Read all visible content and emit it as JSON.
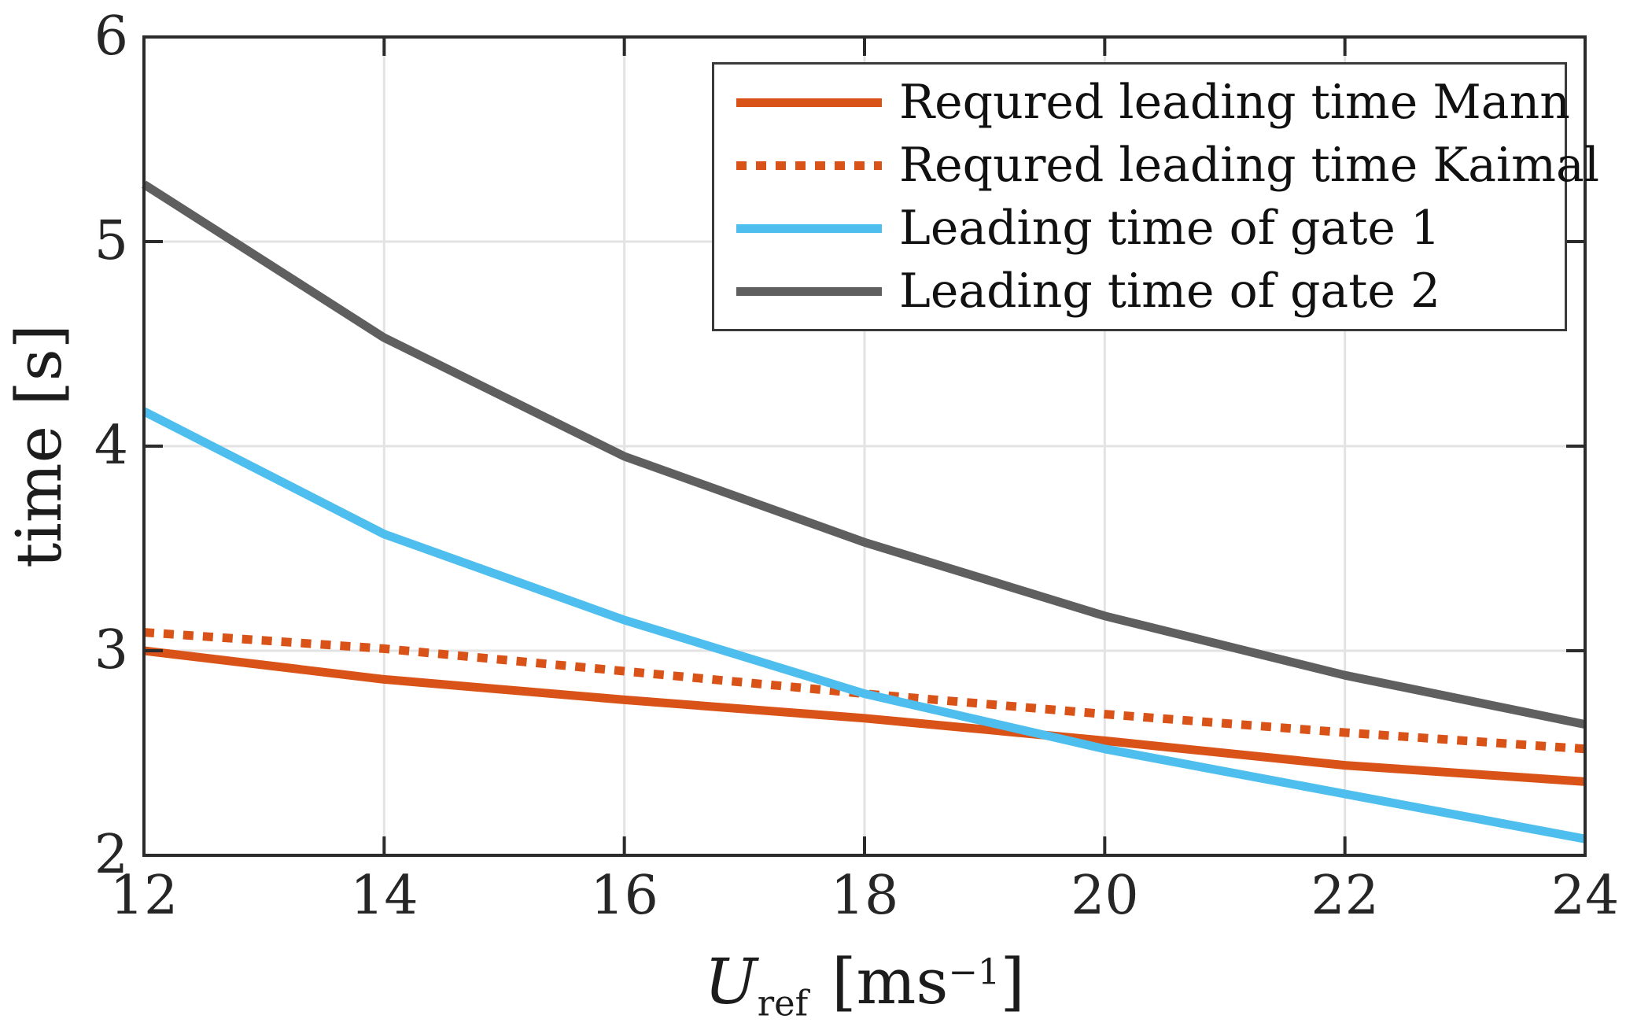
{
  "figure": {
    "background_color": "#ffffff",
    "axis_color": "#2b2b2b",
    "grid_color": "#e3e3e3",
    "tick_text_color": "#262626"
  },
  "labels": {
    "ylabel": "time [s]",
    "xlabel_var": "U",
    "xlabel_sub": "ref",
    "xlabel_unit_open": "[ms",
    "xlabel_sup": "−1",
    "xlabel_unit_close": "]"
  },
  "chart_data": {
    "type": "line",
    "title": "",
    "xlabel": "U_ref [ms^-1]",
    "ylabel": "time [s]",
    "xlim": [
      12,
      24
    ],
    "ylim": [
      2,
      6
    ],
    "xticks": [
      12,
      14,
      16,
      18,
      20,
      22,
      24
    ],
    "yticks": [
      2,
      3,
      4,
      5,
      6
    ],
    "grid": true,
    "legend_position": "top-right",
    "x": [
      12,
      14,
      16,
      18,
      20,
      22,
      24
    ],
    "series": [
      {
        "name": "Requred leading time Mann",
        "color": "#d95319",
        "style": "solid",
        "values": [
          3.0,
          2.86,
          2.76,
          2.67,
          2.56,
          2.44,
          2.36
        ]
      },
      {
        "name": "Requred leading time Kaimal",
        "color": "#d95319",
        "style": "dotted",
        "values": [
          3.09,
          3.01,
          2.9,
          2.79,
          2.69,
          2.6,
          2.52
        ]
      },
      {
        "name": "Leading time of gate 1",
        "color": "#4dbeee",
        "style": "solid",
        "values": [
          4.17,
          3.57,
          3.15,
          2.79,
          2.52,
          2.3,
          2.08
        ]
      },
      {
        "name": "Leading time of gate 2",
        "color": "#5f5f5f",
        "style": "solid",
        "values": [
          5.28,
          4.53,
          3.95,
          3.53,
          3.17,
          2.88,
          2.64
        ]
      }
    ]
  }
}
